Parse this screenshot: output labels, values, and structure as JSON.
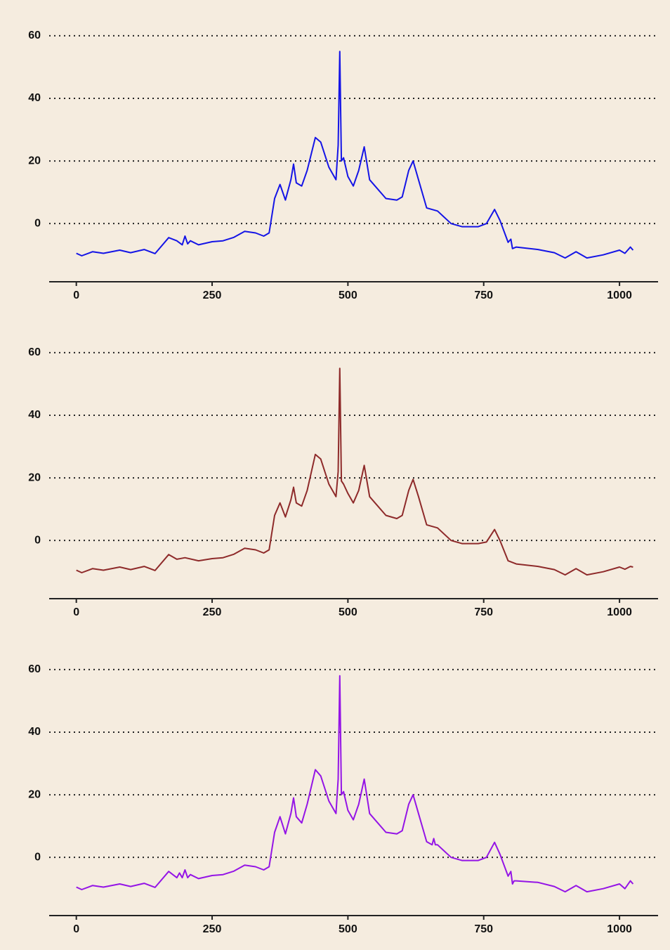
{
  "chart_data": [
    {
      "type": "line",
      "color": "#1414e6",
      "grid": true,
      "xlim": [
        -50,
        1071
      ],
      "ylim": [
        -18.6,
        62
      ],
      "xticks": [
        0,
        250,
        500,
        750,
        1000
      ],
      "yticks": [
        0,
        20,
        40,
        60
      ],
      "x": [
        0,
        10,
        30,
        50,
        80,
        100,
        125,
        145,
        170,
        185,
        195,
        200,
        205,
        210,
        225,
        250,
        270,
        290,
        310,
        330,
        345,
        355,
        365,
        375,
        385,
        395,
        400,
        405,
        415,
        425,
        440,
        450,
        465,
        478,
        482,
        485,
        488,
        492,
        500,
        510,
        520,
        530,
        540,
        550,
        570,
        590,
        600,
        612,
        620,
        630,
        645,
        665,
        690,
        710,
        740,
        755,
        770,
        780,
        795,
        800,
        803,
        810,
        850,
        880,
        900,
        920,
        940,
        970,
        1000,
        1010,
        1020,
        1025
      ],
      "values": [
        -9.5,
        -10.3,
        -9,
        -9.5,
        -8.5,
        -9.3,
        -8.3,
        -9.6,
        -4.5,
        -5.5,
        -6.8,
        -4,
        -6.5,
        -5.5,
        -6.8,
        -5.8,
        -5.5,
        -4.4,
        -2.5,
        -3,
        -4,
        -3,
        8,
        12.5,
        7.5,
        14,
        19,
        13,
        12,
        17,
        27.5,
        26,
        18,
        14,
        25,
        55,
        20,
        21,
        15,
        12,
        17,
        24.5,
        14,
        12,
        8,
        7.5,
        8.5,
        17,
        20,
        14,
        5,
        4,
        0,
        -1,
        -1,
        0,
        4.5,
        1,
        -6,
        -5,
        -8,
        -7.5,
        -8.3,
        -9.3,
        -11,
        -9,
        -11,
        -10,
        -8.5,
        -9.5,
        -7.5,
        -8.5
      ]
    },
    {
      "type": "line",
      "color": "#8e2a2a",
      "grid": true,
      "xlim": [
        -50,
        1071
      ],
      "ylim": [
        -18.6,
        62
      ],
      "xticks": [
        0,
        250,
        500,
        750,
        1000
      ],
      "yticks": [
        0,
        20,
        40,
        60
      ],
      "x": [
        0,
        10,
        30,
        50,
        80,
        100,
        125,
        145,
        170,
        185,
        200,
        225,
        250,
        270,
        290,
        310,
        330,
        345,
        355,
        365,
        375,
        385,
        395,
        400,
        405,
        415,
        425,
        440,
        450,
        465,
        478,
        482,
        485,
        488,
        492,
        500,
        510,
        520,
        530,
        540,
        550,
        570,
        590,
        600,
        612,
        620,
        630,
        645,
        665,
        690,
        710,
        740,
        755,
        770,
        780,
        795,
        810,
        850,
        880,
        900,
        920,
        940,
        970,
        1000,
        1010,
        1020,
        1025
      ],
      "values": [
        -9.5,
        -10.3,
        -9,
        -9.5,
        -8.5,
        -9.3,
        -8.3,
        -9.6,
        -4.5,
        -6,
        -5.5,
        -6.5,
        -5.8,
        -5.5,
        -4.4,
        -2.5,
        -3,
        -4,
        -3,
        8,
        12,
        7.5,
        13,
        17,
        12,
        11,
        16,
        27.5,
        26,
        18,
        14,
        22,
        55,
        19,
        18,
        15,
        12,
        16,
        24,
        14,
        12,
        8,
        7,
        8,
        16,
        19.5,
        14,
        5,
        4,
        0,
        -1,
        -1,
        -0.5,
        3.5,
        0,
        -6.5,
        -7.5,
        -8.3,
        -9.3,
        -11,
        -9,
        -11,
        -10,
        -8.5,
        -9.2,
        -8.3,
        -8.5
      ]
    },
    {
      "type": "line",
      "color": "#9414e6",
      "grid": true,
      "xlim": [
        -50,
        1071
      ],
      "ylim": [
        -18.6,
        62
      ],
      "xticks": [
        0,
        250,
        500,
        750,
        1000
      ],
      "yticks": [
        0,
        20,
        40,
        60
      ],
      "x": [
        0,
        10,
        30,
        50,
        80,
        100,
        125,
        145,
        170,
        185,
        190,
        195,
        200,
        205,
        210,
        225,
        250,
        270,
        290,
        310,
        330,
        345,
        355,
        365,
        375,
        385,
        395,
        400,
        405,
        415,
        425,
        440,
        450,
        465,
        478,
        482,
        485,
        488,
        492,
        500,
        510,
        520,
        530,
        540,
        550,
        570,
        590,
        600,
        612,
        620,
        630,
        645,
        655,
        658,
        661,
        665,
        690,
        710,
        740,
        755,
        770,
        780,
        795,
        800,
        803,
        806,
        810,
        850,
        880,
        900,
        920,
        940,
        970,
        1000,
        1010,
        1020,
        1025
      ],
      "values": [
        -9.5,
        -10.3,
        -9,
        -9.5,
        -8.5,
        -9.3,
        -8.3,
        -9.6,
        -4.5,
        -6.5,
        -5,
        -6.5,
        -4,
        -6.5,
        -5.5,
        -6.8,
        -5.8,
        -5.5,
        -4.4,
        -2.5,
        -3,
        -4,
        -3,
        8,
        13,
        7.5,
        14,
        19,
        13,
        11,
        17,
        28,
        26,
        18,
        14,
        25,
        58,
        20,
        21,
        15,
        12,
        17,
        25,
        14,
        12,
        8,
        7.5,
        8.5,
        17,
        20,
        14,
        5,
        4,
        6,
        4,
        4,
        0,
        -1,
        -1,
        0,
        4.8,
        1,
        -6,
        -4.5,
        -8.5,
        -7.5,
        -7.5,
        -8,
        -9.3,
        -11,
        -9,
        -11,
        -10,
        -8.5,
        -10,
        -7.5,
        -8.5
      ]
    }
  ]
}
